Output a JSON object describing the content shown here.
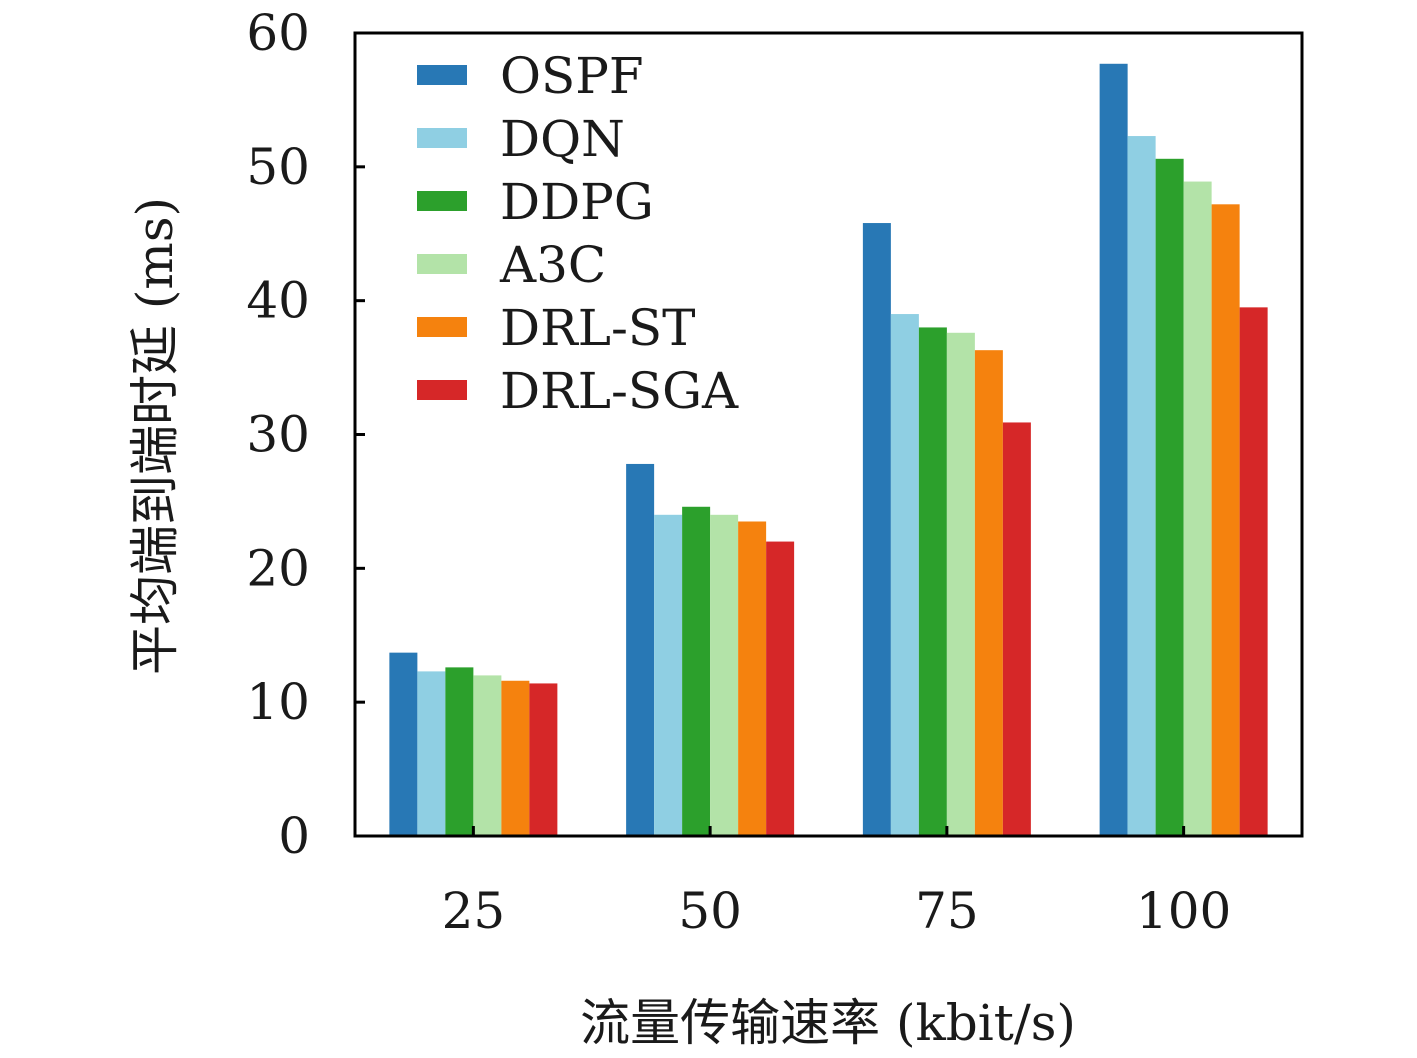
{
  "chart_data": {
    "type": "bar",
    "xlabel": "流量传输速率 (kbit/s)",
    "ylabel": "平均端到端时延 (ms)",
    "ylim": [
      0,
      60
    ],
    "yticks": [
      0,
      10,
      20,
      30,
      40,
      50,
      60
    ],
    "categories": [
      "25",
      "50",
      "75",
      "100"
    ],
    "legend_position": "top-left",
    "grid": false,
    "series": [
      {
        "name": "OSPF",
        "color": "#2878b5",
        "values": [
          13.7,
          27.8,
          45.8,
          57.7
        ]
      },
      {
        "name": "DQN",
        "color": "#8fcfe3",
        "values": [
          12.3,
          24.0,
          39.0,
          52.3
        ]
      },
      {
        "name": "DDPG",
        "color": "#2ca02c",
        "values": [
          12.6,
          24.6,
          38.0,
          50.6
        ]
      },
      {
        "name": "A3C",
        "color": "#b3e3a8",
        "values": [
          12.0,
          24.0,
          37.6,
          48.9
        ]
      },
      {
        "name": "DRL-ST",
        "color": "#f5820e",
        "values": [
          11.6,
          23.5,
          36.3,
          47.2
        ]
      },
      {
        "name": "DRL-SGA",
        "color": "#d62728",
        "values": [
          11.4,
          22.0,
          30.9,
          39.5
        ]
      }
    ]
  }
}
